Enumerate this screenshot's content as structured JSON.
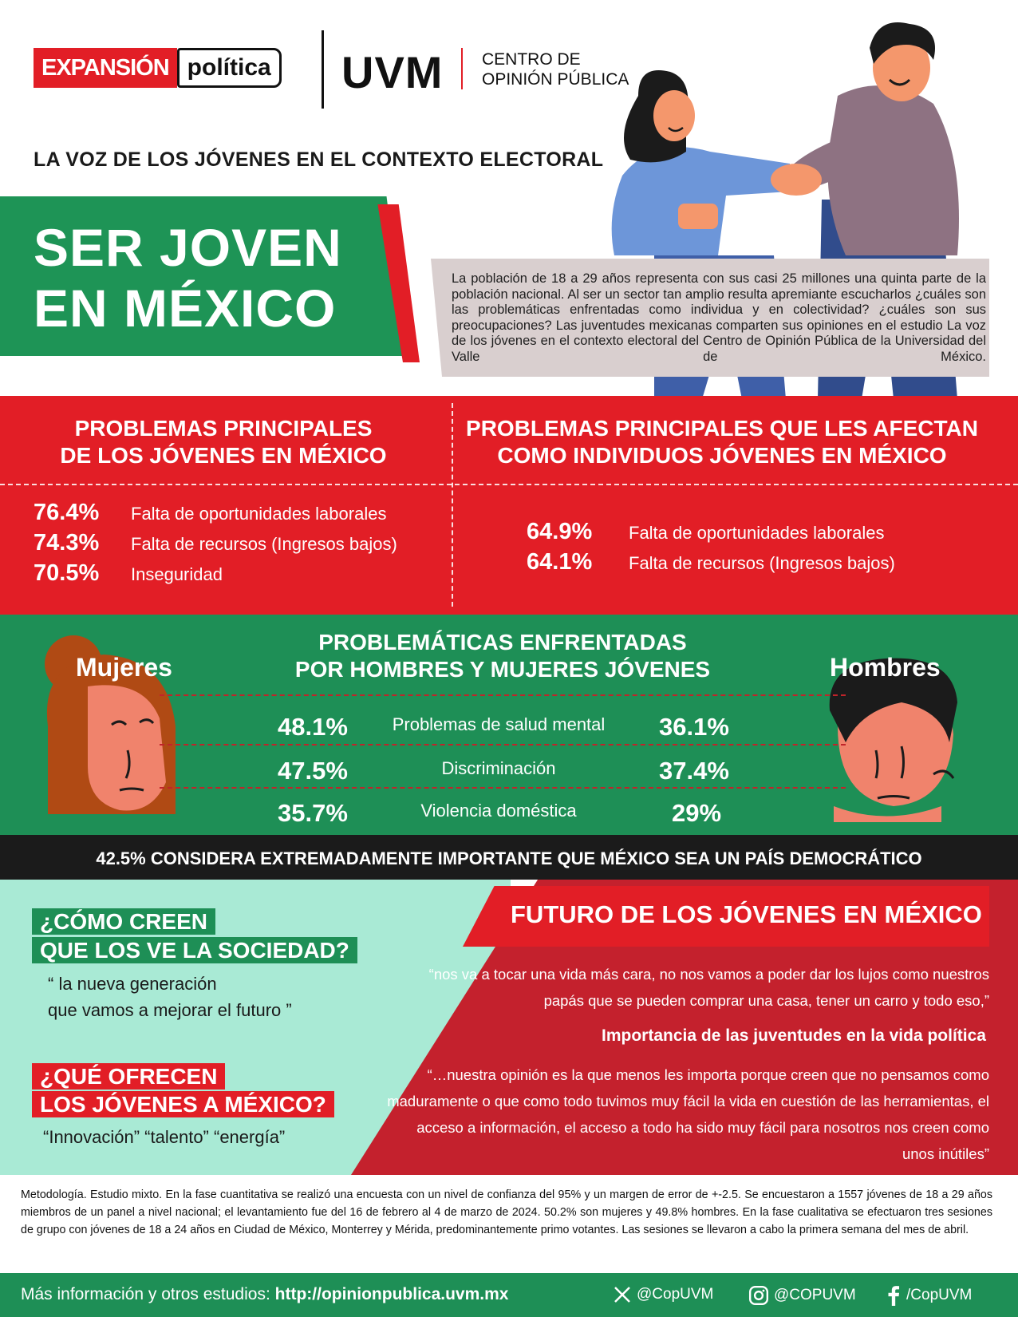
{
  "header": {
    "logo_expansion_red": "EXPANSIÓN",
    "logo_expansion_white": "política",
    "logo_uvm": "UVM",
    "logo_cop_line1": "CENTRO DE",
    "logo_cop_line2": "OPINIÓN PÚBLICA",
    "subtitle": "LA VOZ DE LOS JÓVENES EN EL CONTEXTO ELECTORAL",
    "title_line1": "SER JOVEN",
    "title_line2": "EN MÉXICO",
    "intro": "La población de 18 a 29 años representa con sus casi 25 millones una quinta parte de la población nacional. Al ser un sector tan amplio resulta apremiante escucharlos ¿cuáles son las problemáticas enfrentadas como individua y en colectividad? ¿cuáles son sus preocupaciones? Las juventudes mexicanas comparten sus opiniones en el estudio La voz de los jóvenes en el contexto electoral del Centro de Opinión Pública de la Universidad del Valle de México."
  },
  "problems": {
    "left_title_line1": "PROBLEMAS PRINCIPALES",
    "left_title_line2": "DE LOS JÓVENES EN MÉXICO",
    "right_title_line1": "PROBLEMAS PRINCIPALES QUE LES AFECTAN",
    "right_title_line2": "COMO INDIVIDUOS JÓVENES EN MÉXICO",
    "left_items": [
      {
        "pct": "76.4%",
        "label": "Falta de oportunidades laborales"
      },
      {
        "pct": "74.3%",
        "label": "Falta de recursos (Ingresos bajos)"
      },
      {
        "pct": "70.5%",
        "label": "Inseguridad"
      }
    ],
    "right_items": [
      {
        "pct": "64.9%",
        "label": "Falta de oportunidades laborales"
      },
      {
        "pct": "64.1%",
        "label": "Falta de recursos (Ingresos bajos)"
      }
    ]
  },
  "gender": {
    "title_line1": "PROBLEMÁTICAS ENFRENTADAS",
    "title_line2": "POR HOMBRES Y MUJERES JÓVENES",
    "women_label": "Mujeres",
    "men_label": "Hombres",
    "rows": [
      {
        "women": "48.1%",
        "issue": "Problemas de salud mental",
        "men": "36.1%"
      },
      {
        "women": "47.5%",
        "issue": "Discriminación",
        "men": "37.4%"
      },
      {
        "women": "35.7%",
        "issue": "Violencia doméstica",
        "men": "29%"
      }
    ]
  },
  "democracy": "42.5% CONSIDERA EXTREMADAMENTE IMPORTANTE QUE MÉXICO SEA UN PAÍS DEMOCRÁTICO",
  "society": {
    "q1_line1": "¿CÓMO CREEN",
    "q1_line2": "QUE LOS VE LA SOCIEDAD?",
    "q1_quote_line1": "“ la nueva generación",
    "q1_quote_line2": "que vamos a mejorar el futuro ”",
    "q2_line1": "¿QUÉ OFRECEN",
    "q2_line2": "LOS JÓVENES A MÉXICO?",
    "q2_quote": "“Innovación” “talento”  “energía”"
  },
  "future": {
    "title": "FUTURO DE LOS JÓVENES EN MÉXICO",
    "quote1": "“nos va a tocar una vida más cara, no nos vamos a poder dar los lujos como nuestros papás que se pueden comprar una casa, tener un carro y todo eso,”",
    "importance_title": "Importancia de las juventudes en la vida política",
    "quote2": "“…nuestra opinión es la que menos les importa porque creen que no pensamos como maduramente o que como todo tuvimos muy fácil la vida en cuestión de las herramientas, el acceso a información, el acceso a todo ha sido muy fácil para nosotros nos creen como unos inútiles”"
  },
  "methodology": "Metodología. Estudio mixto. En la fase cuantitativa se realizó una encuesta con un nivel de confianza del 95% y un margen de error de +-2.5. Se encuestaron a 1557 jóvenes de 18 a 29 años miembros de un panel a nivel nacional; el levantamiento fue del 16 de febrero al 4 de marzo de 2024. 50.2% son mujeres y 49.8% hombres. En la fase cualitativa se efectuaron tres sesiones de grupo con jóvenes de 18 a 24 años en Ciudad de México, Monterrey y Mérida, predominantemente primo votantes. Las sesiones se llevaron a cabo la primera semana del mes de abril.",
  "footer": {
    "info_label": "Más información y otros estudios:",
    "url": "http://opinionpublica.uvm.mx",
    "twitter": "@CopUVM",
    "instagram": "@COPUVM",
    "facebook": "/CopUVM"
  },
  "colors": {
    "red": "#e21e26",
    "green": "#1e8f56",
    "mint": "#a9ead5",
    "dark": "#1b1b1b",
    "intro_bg": "#d9cfcf"
  }
}
